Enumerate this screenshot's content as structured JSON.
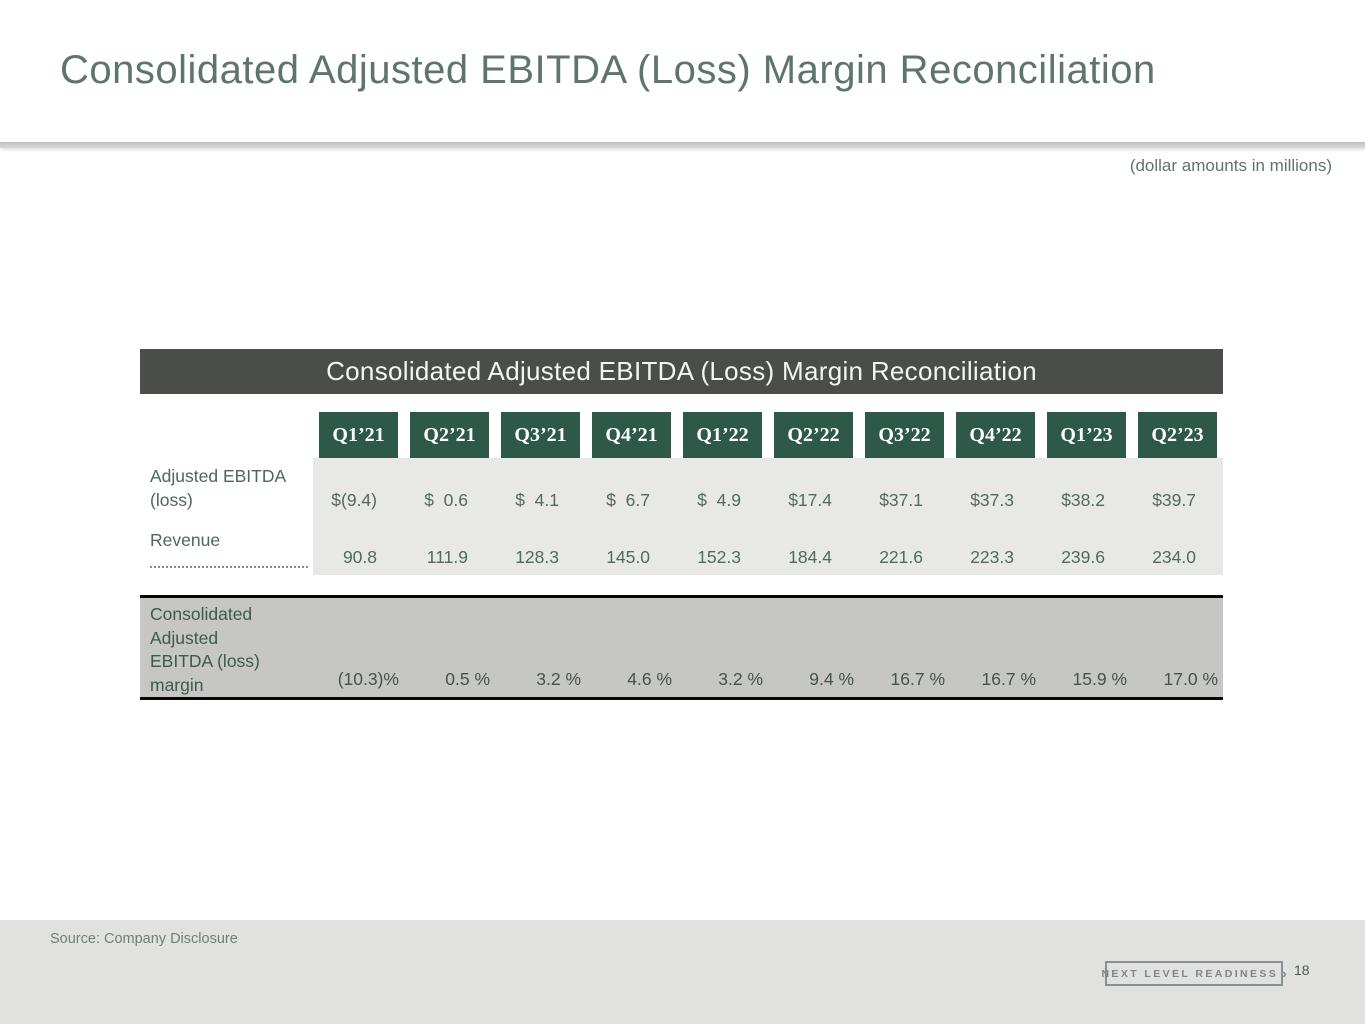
{
  "slide": {
    "title": "Consolidated Adjusted EBITDA (Loss) Margin Reconciliation",
    "units_note": "(dollar amounts in millions)"
  },
  "table": {
    "title": "Consolidated Adjusted EBITDA (Loss) Margin Reconciliation",
    "quarters": [
      "Q1’21",
      "Q2’21",
      "Q3’21",
      "Q4’21",
      "Q1’22",
      "Q2’22",
      "Q3’22",
      "Q4’22",
      "Q1’23",
      "Q2’23"
    ],
    "rows": [
      {
        "label": "Adjusted EBITDA (loss)",
        "values": [
          "$(9.4)",
          "$  0.6",
          "$  4.1",
          "$  6.7",
          "$  4.9",
          "$17.4",
          "$37.1",
          "$37.3",
          "$38.2",
          "$39.7"
        ]
      },
      {
        "label": "Revenue",
        "values": [
          "90.8",
          "111.9",
          "128.3",
          "145.0",
          "152.3",
          "184.4",
          "221.6",
          "223.3",
          "239.6",
          "234.0"
        ]
      }
    ],
    "margin_row": {
      "label": "Consolidated Adjusted EBITDA (loss) margin",
      "values": [
        "(10.3)%",
        "0.5 %",
        "3.2 %",
        "4.6 %",
        "3.2 %",
        "9.4 %",
        "16.7 %",
        "16.7 %",
        "15.9 %",
        "17.0 %"
      ]
    }
  },
  "footer": {
    "source": "Source: Company Disclosure",
    "logo_text": "NEXT LEVEL READINESS",
    "logo_chevron": "›",
    "page_number": "18"
  },
  "colors": {
    "header_bar": "#4a4d49",
    "quarter_box": "#2e5847",
    "accent_text": "#5d756c",
    "data_bg": "#e8e9e7",
    "margin_bg": "#c6c6c5",
    "footer_bg": "#e1e1e0"
  }
}
